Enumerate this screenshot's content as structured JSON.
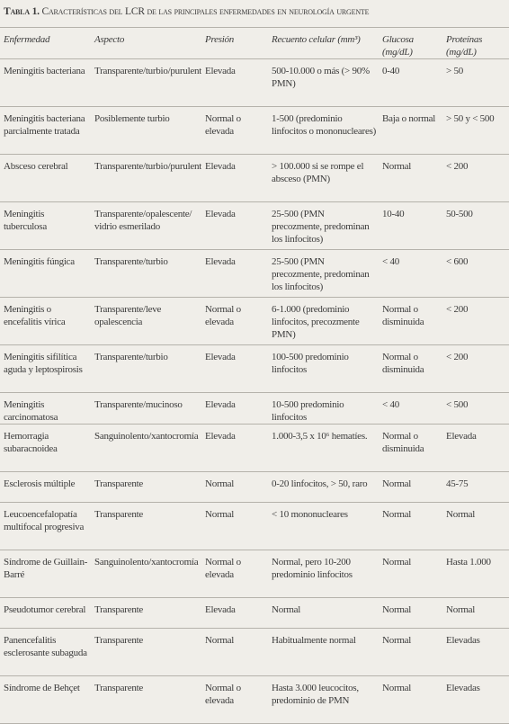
{
  "title": {
    "label": "Tabla 1.",
    "text": "Características del LCR de las principales enfermedades en neurología urgente"
  },
  "table": {
    "header": [
      "Enfermedad",
      "Aspecto",
      "Presión",
      "Recuento celular (mm³)",
      "Glucosa (mg/dL)",
      "Proteínas (mg/dL)"
    ],
    "rows": [
      [
        "Meningitis bacteriana",
        "Transparente/turbio/purulento",
        "Elevada",
        "500-10.000 o más (> 90% PMN)",
        "0-40",
        "> 50"
      ],
      [
        "Meningitis bacteriana parcialmente tratada",
        "Posiblemente turbio",
        "Normal o elevada",
        "1-500 (predominio linfocitos o mononucleares)",
        "Baja o normal",
        "> 50 y < 500"
      ],
      [
        "Absceso cerebral",
        "Transparente/turbio/purulento",
        "Elevada",
        "> 100.000 si se rompe el absceso (PMN)",
        "Normal",
        "< 200"
      ],
      [
        "Meningitis tuberculosa",
        "Transparente/opalescente/ vidrio esmerilado",
        "Elevada",
        "25-500 (PMN precozmente, predominan los linfocitos)",
        "10-40",
        "50-500"
      ],
      [
        "Meningitis fúngica",
        "Transparente/turbio",
        "Elevada",
        "25-500 (PMN precozmente, predominan los linfocitos)",
        "< 40",
        "< 600"
      ],
      [
        "Meningitis o encefalitis vírica",
        "Transparente/leve opalescencia",
        "Normal o elevada",
        "6-1.000 (predominio linfocitos, precozmente PMN)",
        "Normal o disminuida",
        "< 200"
      ],
      [
        "Meningitis sifilítica aguda y leptospirosis",
        "Transparente/turbio",
        "Elevada",
        "100-500 predominio linfocitos",
        "Normal o disminuida",
        "< 200"
      ],
      [
        "Meningitis carcinomatosa",
        "Transparente/mucinoso",
        "Elevada",
        "10-500 predominio linfocitos",
        "< 40",
        "< 500"
      ],
      [
        "Hemorragia subaracnoidea",
        "Sanguinolento/xantocromía",
        "Elevada",
        "1.000-3,5 x 10⁶ hematíes.",
        "Normal o disminuida",
        "Elevada"
      ],
      [
        "Esclerosis múltiple",
        "Transparente",
        "Normal",
        "0-20 linfocitos, > 50, raro",
        "Normal",
        "45-75"
      ],
      [
        "Leucoencefalopatía multifocal progresiva",
        "Transparente",
        "Normal",
        "< 10 mononucleares",
        "Normal",
        "Normal"
      ],
      [
        "Síndrome de Guillain-Barré",
        "Sanguinolento/xantocromía",
        "Normal o elevada",
        "Normal, pero 10-200 predominio linfocitos",
        "Normal",
        "Hasta 1.000"
      ],
      [
        "Pseudotumor cerebral",
        "Transparente",
        "Elevada",
        "Normal",
        "Normal",
        "Normal"
      ],
      [
        "Panencefalitis esclerosante subaguda",
        "Transparente",
        "Normal",
        "Habitualmente normal",
        "Normal",
        "Elevadas"
      ],
      [
        "Síndrome de Behçet",
        "Transparente",
        "Normal o elevada",
        "Hasta 3.000 leucocitos, predominio de PMN",
        "Normal",
        "Elevadas"
      ]
    ]
  }
}
